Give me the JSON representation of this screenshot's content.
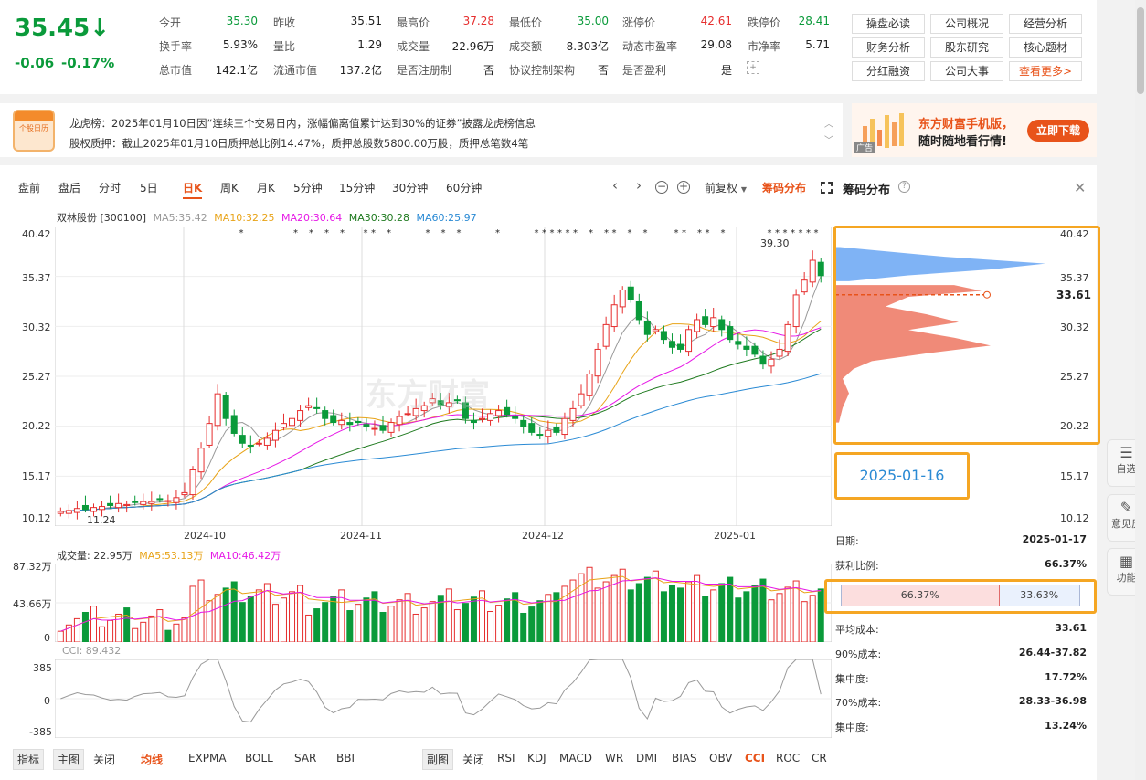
{
  "quote": {
    "price": "35.45↓",
    "change": "-0.06",
    "change_pct": "-0.17%",
    "fields": [
      {
        "label": "今开",
        "value": "35.30",
        "tone": "green"
      },
      {
        "label": "昨收",
        "value": "35.51",
        "tone": "black"
      },
      {
        "label": "最高价",
        "value": "37.28",
        "tone": "red"
      },
      {
        "label": "最低价",
        "value": "35.00",
        "tone": "green"
      },
      {
        "label": "涨停价",
        "value": "42.61",
        "tone": "red"
      },
      {
        "label": "跌停价",
        "value": "28.41",
        "tone": "green"
      },
      {
        "label": "换手率",
        "value": "5.93%",
        "tone": "black"
      },
      {
        "label": "量比",
        "value": "1.29",
        "tone": "black"
      },
      {
        "label": "成交量",
        "value": "22.96万",
        "tone": "black"
      },
      {
        "label": "成交额",
        "value": "8.303亿",
        "tone": "black"
      },
      {
        "label": "动态市盈率",
        "value": "29.08",
        "tone": "black"
      },
      {
        "label": "市净率",
        "value": "5.71",
        "tone": "black"
      },
      {
        "label": "总市值",
        "value": "142.1亿",
        "tone": "black"
      },
      {
        "label": "流通市值",
        "value": "137.2亿",
        "tone": "black"
      },
      {
        "label": "是否注册制",
        "value": "否",
        "tone": "black"
      },
      {
        "label": "协议控制架构",
        "value": "否",
        "tone": "black"
      },
      {
        "label": "是否盈利",
        "value": "是",
        "tone": "black"
      }
    ]
  },
  "links": [
    "操盘必读",
    "公司概况",
    "经营分析",
    "财务分析",
    "股东研究",
    "核心题材",
    "分红融资",
    "公司大事",
    "查看更多>"
  ],
  "notice": {
    "icon_text": "个股日历",
    "line1": "龙虎榜：2025年01月10日因“连续三个交易日内，涨幅偏离值累计达到30%的证券”披露龙虎榜信息",
    "line2": "股权质押：截止2025年01月10日质押总比例14.47%，质押总股数5800.00万股，质押总笔数4笔"
  },
  "ad": {
    "badge": "广告",
    "line1": "东方财富手机版，",
    "line2": "随时随地看行情!",
    "button": "立即下载"
  },
  "toolbar": {
    "tabs": [
      "盘前",
      "盘后",
      "分时",
      "5日",
      "日K",
      "周K",
      "月K",
      "5分钟",
      "15分钟",
      "30分钟",
      "60分钟"
    ],
    "active": "日K",
    "adjust": "前复权",
    "chip_link": "筹码分布",
    "chip_title": "筹码分布"
  },
  "legend": {
    "name": "双林股份 [300100]",
    "ma5": "MA5:35.42",
    "ma10": "MA10:32.25",
    "ma20": "MA20:30.64",
    "ma30": "MA30:30.28",
    "ma60": "MA60:25.97"
  },
  "price_axis": [
    "40.42",
    "35.37",
    "30.32",
    "25.27",
    "20.22",
    "15.17",
    "10.12"
  ],
  "date_axis": [
    "2024-10",
    "2024-11",
    "2024-12",
    "2025-01"
  ],
  "annotations": {
    "high": "39.30",
    "low": "11.24",
    "chip_avg": "33.61",
    "hover_date": "2025-01-16"
  },
  "volume": {
    "legend": "成交量: 22.95万",
    "ma5": "MA5:53.13万",
    "ma10": "MA10:46.42万",
    "axis": [
      "87.32万",
      "43.66万",
      "0"
    ]
  },
  "cci": {
    "legend": "CCI: 89.432",
    "axis": [
      "385",
      "0",
      "-385"
    ]
  },
  "chip": {
    "date_label": "日期:",
    "date": "2025-01-17",
    "profit_label": "获利比例:",
    "profit": "66.37%",
    "bar_left": "66.37%",
    "bar_right": "33.63%",
    "avg_label": "平均成本:",
    "avg": "33.61",
    "c90_label": "90%成本:",
    "c90": "26.44-37.82",
    "conc90_label": "集中度:",
    "conc90": "17.72%",
    "c70_label": "70%成本:",
    "c70": "28.33-36.98",
    "conc70_label": "集中度:",
    "conc70": "13.24%"
  },
  "main_indicators": {
    "label": "指标",
    "main": "主图",
    "items": [
      "关闭",
      "均线",
      "EXPMA",
      "BOLL",
      "SAR",
      "BBI"
    ],
    "active": "均线"
  },
  "sub_indicators": {
    "label": "副图",
    "items": [
      "关闭",
      "RSI",
      "KDJ",
      "MACD",
      "WR",
      "DMI",
      "BIAS",
      "OBV",
      "CCI",
      "ROC",
      "CR"
    ],
    "active": "CCI"
  },
  "side": [
    "自选",
    "意见反",
    "功能"
  ],
  "colors": {
    "up": "#e62e2e",
    "down": "#0a9a3a",
    "ma5": "#999999",
    "ma10": "#e8a317",
    "ma20": "#e617e6",
    "ma30": "#1f7a1f",
    "ma60": "#2a8ad4",
    "highlight": "#f5a623"
  },
  "chart_data": {
    "type": "candlestick",
    "x": [
      "2024-09",
      "2024-09",
      "2024-09",
      "2024-09",
      "2024-09",
      "2024-09",
      "2024-09",
      "2024-09",
      "2024-09",
      "2024-09",
      "2024-09",
      "2024-09",
      "2024-09",
      "2024-09",
      "2024-09",
      "2024-09",
      "2024-09",
      "2024-10",
      "2024-10",
      "2024-10",
      "2024-10",
      "2024-10",
      "2024-10",
      "2024-10",
      "2024-10",
      "2024-10",
      "2024-10",
      "2024-10",
      "2024-10",
      "2024-10",
      "2024-10",
      "2024-10",
      "2024-10",
      "2024-10",
      "2024-10",
      "2024-10",
      "2024-10",
      "2024-10",
      "2024-10",
      "2024-11",
      "2024-11",
      "2024-11",
      "2024-11",
      "2024-11",
      "2024-11",
      "2024-11",
      "2024-11",
      "2024-11",
      "2024-11",
      "2024-11",
      "2024-11",
      "2024-11",
      "2024-11",
      "2024-11",
      "2024-11",
      "2024-11",
      "2024-11",
      "2024-11",
      "2024-11",
      "2024-11",
      "2024-12",
      "2024-12",
      "2024-12",
      "2024-12",
      "2024-12",
      "2024-12",
      "2024-12",
      "2024-12",
      "2024-12",
      "2024-12",
      "2024-12",
      "2024-12",
      "2024-12",
      "2024-12",
      "2024-12",
      "2024-12",
      "2024-12",
      "2024-12",
      "2024-12",
      "2024-12",
      "2024-12",
      "2025-01",
      "2025-01",
      "2025-01",
      "2025-01",
      "2025-01",
      "2025-01",
      "2025-01",
      "2025-01",
      "2025-01",
      "2025-01",
      "2025-01",
      "2025-01"
    ],
    "close": [
      11.6,
      11.7,
      11.9,
      11.8,
      12.0,
      12.1,
      12.2,
      12.4,
      12.3,
      12.5,
      12.6,
      12.6,
      12.8,
      12.7,
      13.0,
      13.5,
      15.8,
      18.0,
      20.5,
      23.5,
      21.0,
      19.5,
      18.5,
      18.2,
      18.5,
      19.0,
      19.8,
      20.5,
      21.0,
      21.8,
      22.3,
      22.0,
      21.0,
      20.6,
      20.8,
      20.4,
      20.6,
      20.2,
      20.0,
      19.8,
      20.6,
      21.2,
      21.5,
      22.0,
      22.3,
      23.0,
      22.4,
      22.6,
      22.8,
      21.0,
      20.6,
      21.0,
      21.5,
      21.8,
      21.4,
      21.0,
      20.2,
      19.6,
      19.4,
      19.8,
      19.6,
      21.0,
      22.0,
      23.5,
      25.5,
      28.0,
      30.5,
      32.5,
      34.0,
      33.0,
      31.0,
      29.5,
      30.0,
      29.0,
      28.2,
      28.0,
      30.0,
      31.0,
      30.5,
      31.2,
      30.0,
      29.0,
      28.5,
      28.0,
      27.5,
      26.5,
      27.0,
      28.0,
      30.5,
      33.5,
      35.0,
      37.0,
      35.45
    ],
    "ma5": [
      11.6,
      11.65,
      11.73,
      11.75,
      11.8,
      11.9,
      12.0,
      12.1,
      12.2,
      12.3,
      12.4,
      12.48,
      12.56,
      12.64,
      12.74,
      12.92,
      13.56,
      14.7,
      16.36,
      18.26,
      19.76,
      20.5,
      20.6,
      20.14,
      19.14,
      18.74,
      18.8,
      19.2,
      19.76,
      20.42,
      21.08,
      21.52,
      21.62,
      21.54,
      21.34,
      20.96,
      20.68,
      20.52,
      20.4,
      20.2,
      20.24,
      20.36,
      20.62,
      21.02,
      21.52,
      22.0,
      22.24,
      22.46,
      22.62,
      22.36,
      21.88,
      21.6,
      21.38,
      21.18,
      21.26,
      21.34,
      21.18,
      20.8,
      20.32,
      20.0,
      19.72,
      19.88,
      20.36,
      21.18,
      22.32,
      24.0,
      25.9,
      27.9,
      29.7,
      30.8,
      31.5,
      31.1,
      30.0,
      29.52,
      28.74,
      28.08,
      28.64,
      29.16,
      29.5,
      30.24,
      30.54,
      30.34,
      29.72,
      29.1,
      28.42,
      27.62,
      27.1,
      26.96,
      27.4,
      28.8,
      30.8,
      33.3,
      35.42
    ]
  }
}
